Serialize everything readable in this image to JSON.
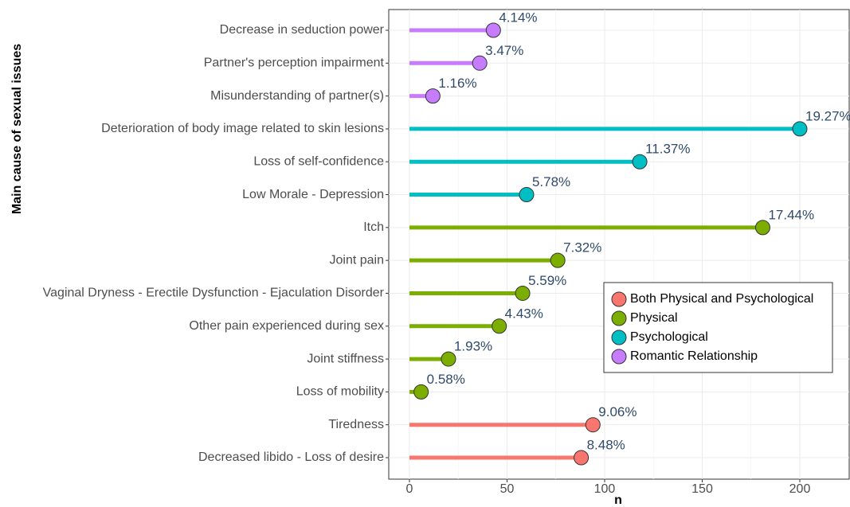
{
  "chart_data": {
    "type": "lollipop",
    "xlabel": "n",
    "ylabel": "Main cause of sexual issues",
    "categories": [
      "Decrease in seduction power",
      "Partner's perception impairment",
      "Misunderstanding of partner(s)",
      "Deterioration of body image related to skin lesions",
      "Loss of self-confidence",
      "Low Morale - Depression",
      "Itch",
      "Joint pain",
      "Vaginal Dryness - Erectile Dysfunction - Ejaculation Disorder",
      "Other pain experienced during sex",
      "Joint stiffness",
      "Loss of mobility",
      "Tiredness",
      "Decreased libido - Loss of desire"
    ],
    "values": [
      43,
      36,
      12,
      200,
      118,
      60,
      181,
      76,
      58,
      46,
      20,
      6,
      94,
      88
    ],
    "value_labels": [
      "4.14%",
      "3.47%",
      "1.16%",
      "19.27%",
      "11.37%",
      "5.78%",
      "17.44%",
      "7.32%",
      "5.59%",
      "4.43%",
      "1.93%",
      "0.58%",
      "9.06%",
      "8.48%"
    ],
    "groups": [
      "Romantic Relationship",
      "Romantic Relationship",
      "Romantic Relationship",
      "Psychological",
      "Psychological",
      "Psychological",
      "Physical",
      "Physical",
      "Physical",
      "Physical",
      "Physical",
      "Physical",
      "Both Physical and Psychological",
      "Both Physical and Psychological"
    ],
    "legend": [
      {
        "name": "Both Physical and Psychological",
        "color": "#f8766d"
      },
      {
        "name": "Physical",
        "color": "#7cae00"
      },
      {
        "name": "Psychological",
        "color": "#00bfc4"
      },
      {
        "name": "Romantic Relationship",
        "color": "#c77cff"
      }
    ],
    "xlim": [
      -10.6,
      225.3
    ],
    "xticks": [
      0,
      50,
      100,
      150,
      200
    ],
    "xminor_ticks": [
      25,
      75,
      125,
      175
    ],
    "grid": true,
    "legend_position": "right"
  }
}
